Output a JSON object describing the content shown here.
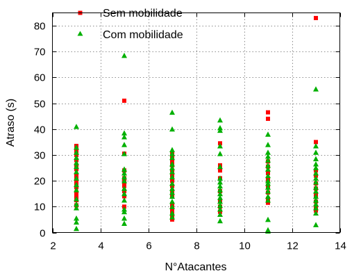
{
  "chart_data": {
    "type": "scatter",
    "title": "",
    "xlabel": "N°Atacantes",
    "ylabel": "Atraso (s)",
    "xlim": [
      2,
      14
    ],
    "ylim": [
      0,
      85
    ],
    "xticks": [
      2,
      4,
      6,
      8,
      10,
      12,
      14
    ],
    "yticks": [
      0,
      10,
      20,
      30,
      40,
      50,
      60,
      70,
      80
    ],
    "grid": true,
    "legend_position": "top-left",
    "series": [
      {
        "name": "Sem mobilidade",
        "marker": "square",
        "color": "#ff0000",
        "points": [
          [
            3,
            33.5
          ],
          [
            3,
            31.5
          ],
          [
            3,
            30
          ],
          [
            3,
            28
          ],
          [
            3,
            26
          ],
          [
            3,
            24.5
          ],
          [
            3,
            22
          ],
          [
            3,
            20.5
          ],
          [
            3,
            19
          ],
          [
            3,
            17.5
          ],
          [
            3,
            15.5
          ],
          [
            3,
            14
          ],
          [
            3,
            12.5
          ],
          [
            3,
            10.5
          ],
          [
            5,
            51
          ],
          [
            5,
            30.5
          ],
          [
            5,
            24
          ],
          [
            5,
            21
          ],
          [
            5,
            19.5
          ],
          [
            5,
            18
          ],
          [
            5,
            16
          ],
          [
            5,
            14
          ],
          [
            5,
            10
          ],
          [
            7,
            30.5
          ],
          [
            7,
            29
          ],
          [
            7,
            27.5
          ],
          [
            7,
            26
          ],
          [
            7,
            24
          ],
          [
            7,
            22
          ],
          [
            7,
            20
          ],
          [
            7,
            18
          ],
          [
            7,
            16
          ],
          [
            7,
            14
          ],
          [
            7,
            11
          ],
          [
            7,
            9.5
          ],
          [
            7,
            8
          ],
          [
            7,
            6.5
          ],
          [
            7,
            5
          ],
          [
            9,
            34.5
          ],
          [
            9,
            26
          ],
          [
            9,
            24
          ],
          [
            9,
            21
          ],
          [
            9,
            16
          ],
          [
            9,
            12
          ],
          [
            9,
            10
          ],
          [
            9,
            8
          ],
          [
            11,
            46.5
          ],
          [
            11,
            44
          ],
          [
            11,
            27.5
          ],
          [
            11,
            25.5
          ],
          [
            11,
            23
          ],
          [
            11,
            20.5
          ],
          [
            11,
            18
          ],
          [
            11,
            15.5
          ],
          [
            11,
            13
          ],
          [
            11,
            11.5
          ],
          [
            13,
            83
          ],
          [
            13,
            35
          ],
          [
            13,
            24
          ],
          [
            13,
            22
          ],
          [
            13,
            19
          ],
          [
            13,
            17
          ],
          [
            13,
            14.5
          ],
          [
            13,
            12
          ],
          [
            13,
            10
          ],
          [
            13,
            8.5
          ]
        ]
      },
      {
        "name": "Com mobilidade",
        "marker": "triangle",
        "color": "#00b000",
        "points": [
          [
            3,
            41
          ],
          [
            3,
            33
          ],
          [
            3,
            31
          ],
          [
            3,
            29
          ],
          [
            3,
            27
          ],
          [
            3,
            25.5
          ],
          [
            3,
            23.5
          ],
          [
            3,
            21
          ],
          [
            3,
            18.5
          ],
          [
            3,
            16.5
          ],
          [
            3,
            13
          ],
          [
            3,
            11
          ],
          [
            3,
            9.5
          ],
          [
            3,
            5.5
          ],
          [
            3,
            4
          ],
          [
            3,
            1.5
          ],
          [
            5,
            68.5
          ],
          [
            5,
            38.5
          ],
          [
            5,
            37
          ],
          [
            5,
            34
          ],
          [
            5,
            30.5
          ],
          [
            5,
            24.5
          ],
          [
            5,
            23
          ],
          [
            5,
            21.5
          ],
          [
            5,
            20
          ],
          [
            5,
            17
          ],
          [
            5,
            15
          ],
          [
            5,
            12.5
          ],
          [
            5,
            9
          ],
          [
            5,
            8
          ],
          [
            5,
            5.5
          ],
          [
            5,
            3.5
          ],
          [
            7,
            46.5
          ],
          [
            7,
            40
          ],
          [
            7,
            32
          ],
          [
            7,
            30.5
          ],
          [
            7,
            29
          ],
          [
            7,
            26.5
          ],
          [
            7,
            25
          ],
          [
            7,
            23.5
          ],
          [
            7,
            21.5
          ],
          [
            7,
            19
          ],
          [
            7,
            17
          ],
          [
            7,
            15.5
          ],
          [
            7,
            14
          ],
          [
            7,
            12
          ],
          [
            7,
            10
          ],
          [
            7,
            7.5
          ],
          [
            7,
            6
          ],
          [
            9,
            43.5
          ],
          [
            9,
            40.5
          ],
          [
            9,
            39.5
          ],
          [
            9,
            33.5
          ],
          [
            9,
            30.5
          ],
          [
            9,
            25.5
          ],
          [
            9,
            21
          ],
          [
            9,
            19.5
          ],
          [
            9,
            18
          ],
          [
            9,
            16.5
          ],
          [
            9,
            15
          ],
          [
            9,
            13.5
          ],
          [
            9,
            12
          ],
          [
            9,
            10.5
          ],
          [
            9,
            9
          ],
          [
            9,
            7
          ],
          [
            9,
            4.5
          ],
          [
            11,
            38
          ],
          [
            11,
            34
          ],
          [
            11,
            31
          ],
          [
            11,
            29.5
          ],
          [
            11,
            28
          ],
          [
            11,
            26
          ],
          [
            11,
            24.5
          ],
          [
            11,
            22
          ],
          [
            11,
            20
          ],
          [
            11,
            19
          ],
          [
            11,
            17.5
          ],
          [
            11,
            16
          ],
          [
            11,
            14
          ],
          [
            11,
            12.5
          ],
          [
            11,
            5
          ],
          [
            11,
            1
          ],
          [
            11,
            0.5
          ],
          [
            13,
            55.5
          ],
          [
            13,
            33.5
          ],
          [
            13,
            31
          ],
          [
            13,
            28.5
          ],
          [
            13,
            26.5
          ],
          [
            13,
            25
          ],
          [
            13,
            23
          ],
          [
            13,
            21
          ],
          [
            13,
            19.5
          ],
          [
            13,
            17.5
          ],
          [
            13,
            16
          ],
          [
            13,
            14
          ],
          [
            13,
            12.5
          ],
          [
            13,
            11
          ],
          [
            13,
            9.5
          ],
          [
            13,
            7.5
          ],
          [
            13,
            3
          ]
        ]
      }
    ]
  }
}
